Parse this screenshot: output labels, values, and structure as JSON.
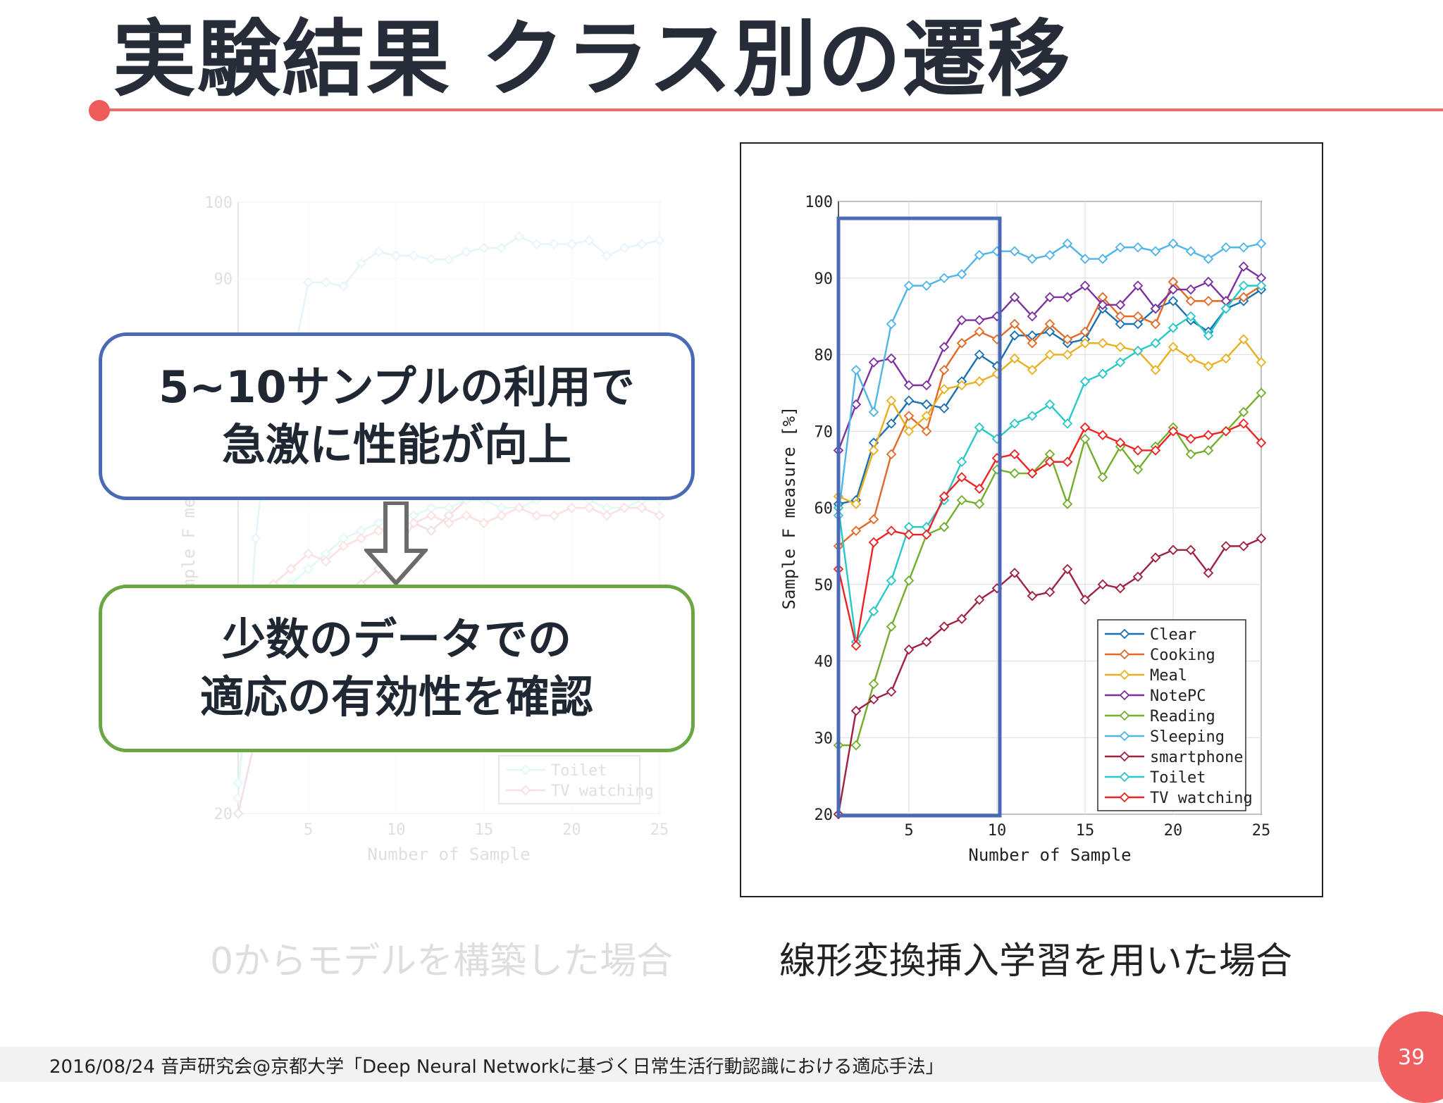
{
  "slide": {
    "title": "実験結果 クラス別の遷移",
    "callout_top": [
      "5~10サンプルの利用で",
      "急激に性能が向上"
    ],
    "callout_bottom": [
      "少数のデータでの",
      "適応の有効性を確認"
    ],
    "caption_left": "0からモデルを構築した場合",
    "caption_right": "線形変換挿入学習を用いた場合",
    "footer": "2016/08/24 音声研究会@京都大学「Deep Neural Networkに基づく日常生活行動認識における適応手法」",
    "page_number": "39",
    "accent_color": "#ef6a6a"
  },
  "chart_data": [
    {
      "type": "line",
      "faded": true,
      "xlabel": "Number of Sample",
      "ylabel": "Sample F measure [%]",
      "xlim": [
        1,
        25
      ],
      "ylim": [
        20,
        100
      ],
      "xticks": [
        5,
        10,
        15,
        20,
        25
      ],
      "yticks": [
        20,
        90,
        100
      ],
      "grid": true,
      "legend_visible": [
        "Toilet",
        "TV watching"
      ],
      "x": [
        1,
        2,
        3,
        4,
        5,
        6,
        7,
        8,
        9,
        10,
        11,
        12,
        13,
        14,
        15,
        16,
        17,
        18,
        19,
        20,
        21,
        22,
        23,
        24,
        25
      ],
      "series": [
        {
          "name": "Sleeping",
          "color": "#4fb4e8",
          "values": [
            22,
            56,
            76,
            78,
            89.5,
            89.5,
            89,
            92,
            93.5,
            93,
            93,
            92.5,
            92.5,
            93.5,
            94,
            94,
            95.5,
            94.5,
            94.5,
            94.5,
            95,
            93,
            94,
            94.5,
            95
          ]
        },
        {
          "name": "smartphone",
          "color": "#a02040",
          "values": [
            20,
            30,
            37,
            40,
            42,
            45,
            46,
            50,
            52,
            54,
            58,
            57,
            59,
            61,
            62,
            63,
            64,
            64,
            65,
            65,
            64,
            66,
            66,
            67,
            68
          ]
        },
        {
          "name": "Toilet",
          "color": "#28c8c8",
          "values": [
            24,
            42,
            48,
            50,
            52,
            54,
            56,
            57,
            58,
            60,
            59,
            60,
            60,
            61,
            61,
            60,
            60,
            61,
            62,
            62,
            61,
            60,
            60,
            61,
            61
          ]
        },
        {
          "name": "TV watching",
          "color": "#ee2222",
          "values": [
            30,
            48,
            50,
            52,
            54,
            53,
            55,
            56,
            57,
            58,
            58,
            59,
            58,
            59,
            58,
            59,
            60,
            59,
            59,
            60,
            60,
            59,
            60,
            60,
            59
          ]
        }
      ]
    },
    {
      "type": "line",
      "xlabel": "Number of Sample",
      "ylabel": "Sample F measure [%]",
      "xlim": [
        1,
        25
      ],
      "ylim": [
        20,
        100
      ],
      "xticks": [
        5,
        10,
        15,
        20,
        25
      ],
      "yticks": [
        20,
        30,
        40,
        50,
        60,
        70,
        80,
        90,
        100
      ],
      "grid": true,
      "legend_position": "bottom-right",
      "highlight_range_x": [
        1,
        10
      ],
      "highlight_color": "#4a6ab8",
      "x": [
        1,
        2,
        3,
        4,
        5,
        6,
        7,
        8,
        9,
        10,
        11,
        12,
        13,
        14,
        15,
        16,
        17,
        18,
        19,
        20,
        21,
        22,
        23,
        24,
        25
      ],
      "series": [
        {
          "name": "Clear",
          "color": "#1a6fb0",
          "values": [
            60.5,
            61,
            68.5,
            71,
            74,
            73.5,
            73,
            76.5,
            80,
            78.5,
            82.5,
            82.5,
            83,
            81.5,
            82,
            86,
            84,
            84,
            86,
            87,
            84.5,
            83,
            86,
            87,
            88.5
          ]
        },
        {
          "name": "Cooking",
          "color": "#e06a28",
          "values": [
            55,
            57,
            58.5,
            67,
            72,
            70,
            78,
            81.5,
            83,
            82,
            84,
            81.5,
            84,
            82,
            83,
            87.5,
            85,
            85,
            84,
            89.5,
            87,
            87,
            87,
            87.5,
            89
          ]
        },
        {
          "name": "Meal",
          "color": "#e8b020",
          "values": [
            61.5,
            60.5,
            67.5,
            74,
            70,
            72,
            75.5,
            76,
            76.5,
            77.5,
            79.5,
            78,
            80,
            80,
            81.5,
            81.5,
            81,
            80.5,
            78,
            81,
            79.5,
            78.5,
            79.5,
            82,
            79
          ]
        },
        {
          "name": "NotePC",
          "color": "#7e2fa0",
          "values": [
            67.5,
            73.5,
            79,
            79.5,
            76,
            76,
            81,
            84.5,
            84.5,
            85,
            87.5,
            85,
            87.5,
            87.5,
            89,
            86.5,
            86.5,
            89,
            86,
            88.5,
            88.5,
            89.5,
            87,
            91.5,
            90
          ]
        },
        {
          "name": "Reading",
          "color": "#72ad2c",
          "values": [
            29,
            29,
            37,
            44.5,
            50.5,
            56.5,
            57.5,
            61,
            60.5,
            65,
            64.5,
            64.5,
            67,
            60.5,
            69,
            64,
            68,
            65,
            68,
            70.5,
            67,
            67.5,
            70,
            72.5,
            75
          ]
        },
        {
          "name": "Sleeping",
          "color": "#4fb4e8",
          "values": [
            59,
            78,
            72.5,
            84,
            89,
            89,
            90,
            90.5,
            93,
            93.5,
            93.5,
            92.5,
            93,
            94.5,
            92.5,
            92.5,
            94,
            94,
            93.5,
            94.5,
            93.5,
            92.5,
            94,
            94,
            94.5
          ]
        },
        {
          "name": "smartphone",
          "color": "#a02040",
          "values": [
            20,
            33.5,
            35,
            36,
            41.5,
            42.5,
            44.5,
            45.5,
            48,
            49.5,
            51.5,
            48.5,
            49,
            52,
            48,
            50,
            49.5,
            51,
            53.5,
            54.5,
            54.5,
            51.5,
            55,
            55,
            56
          ]
        },
        {
          "name": "Toilet",
          "color": "#28c8c8",
          "values": [
            60,
            42.5,
            46.5,
            50.5,
            57.5,
            57.5,
            61,
            66,
            70.5,
            69,
            71,
            72,
            73.5,
            71,
            76.5,
            77.5,
            79,
            80.5,
            81.5,
            83.5,
            85,
            82.5,
            86,
            89,
            89
          ]
        },
        {
          "name": "TV watching",
          "color": "#ee2222",
          "values": [
            52,
            42,
            55.5,
            57,
            56.5,
            56.5,
            61.5,
            64,
            62.5,
            66.5,
            67,
            64.5,
            66,
            66,
            70.5,
            69.5,
            68.5,
            67.5,
            67.5,
            70,
            69,
            69.5,
            70,
            71,
            68.5
          ]
        }
      ]
    }
  ]
}
